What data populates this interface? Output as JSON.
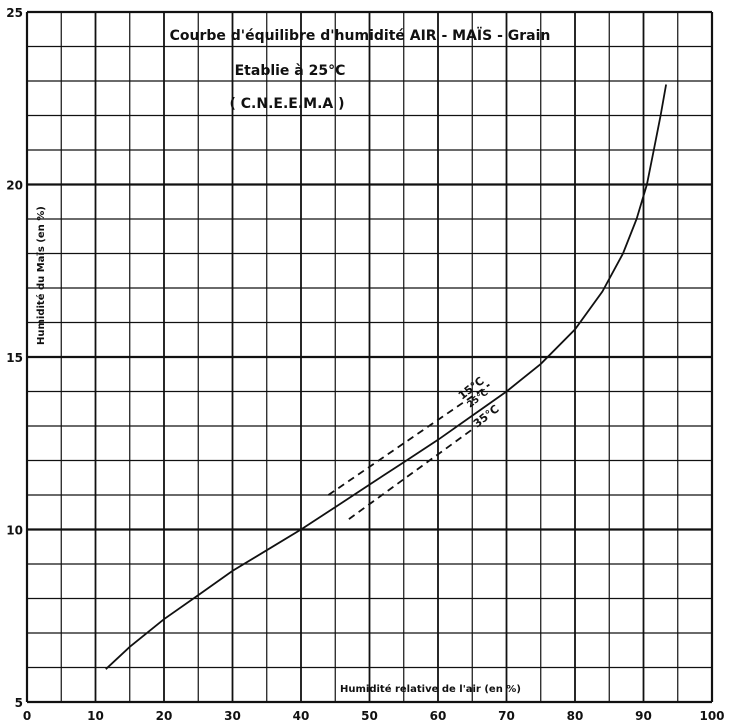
{
  "chart_data": {
    "type": "line",
    "title": [
      "Courbe  d'équilibre  d'humidité  AIR - MAÏS - Grain",
      "Etablie à 25°C",
      "( C.N.E.E.M.A )"
    ],
    "xlabel": "Humidité relative de l'air (en %)",
    "ylabel": "Humidité du Maïs (en %)",
    "xlim": [
      0,
      100
    ],
    "ylim": [
      5,
      25
    ],
    "xticks": [
      0,
      10,
      20,
      30,
      40,
      50,
      60,
      70,
      80,
      90,
      100
    ],
    "yticks": [
      5,
      10,
      15,
      20,
      25
    ],
    "grid": {
      "x_step": 5,
      "y_step": 1
    },
    "series": [
      {
        "name": "25°C",
        "style": "solid",
        "x": [
          11.5,
          15,
          20,
          25,
          30,
          35,
          40,
          45,
          50,
          55,
          60,
          65,
          70,
          75,
          80,
          84,
          87,
          89,
          90.5,
          91.5,
          92.5,
          93.3
        ],
        "y": [
          5.95,
          6.6,
          7.4,
          8.1,
          8.8,
          9.4,
          10.0,
          10.65,
          11.3,
          11.95,
          12.6,
          13.3,
          14.0,
          14.8,
          15.8,
          16.9,
          18.0,
          19.0,
          20.0,
          21.0,
          22.0,
          22.9
        ]
      },
      {
        "name": "15°C",
        "style": "dashed",
        "x": [
          44,
          67.5
        ],
        "y": [
          11.0,
          14.2
        ]
      },
      {
        "name": "35°C",
        "style": "dashed",
        "x": [
          47,
          65
        ],
        "y": [
          10.3,
          12.9
        ]
      }
    ],
    "annotations": [
      "15°C",
      "25°C",
      "35°C"
    ]
  }
}
